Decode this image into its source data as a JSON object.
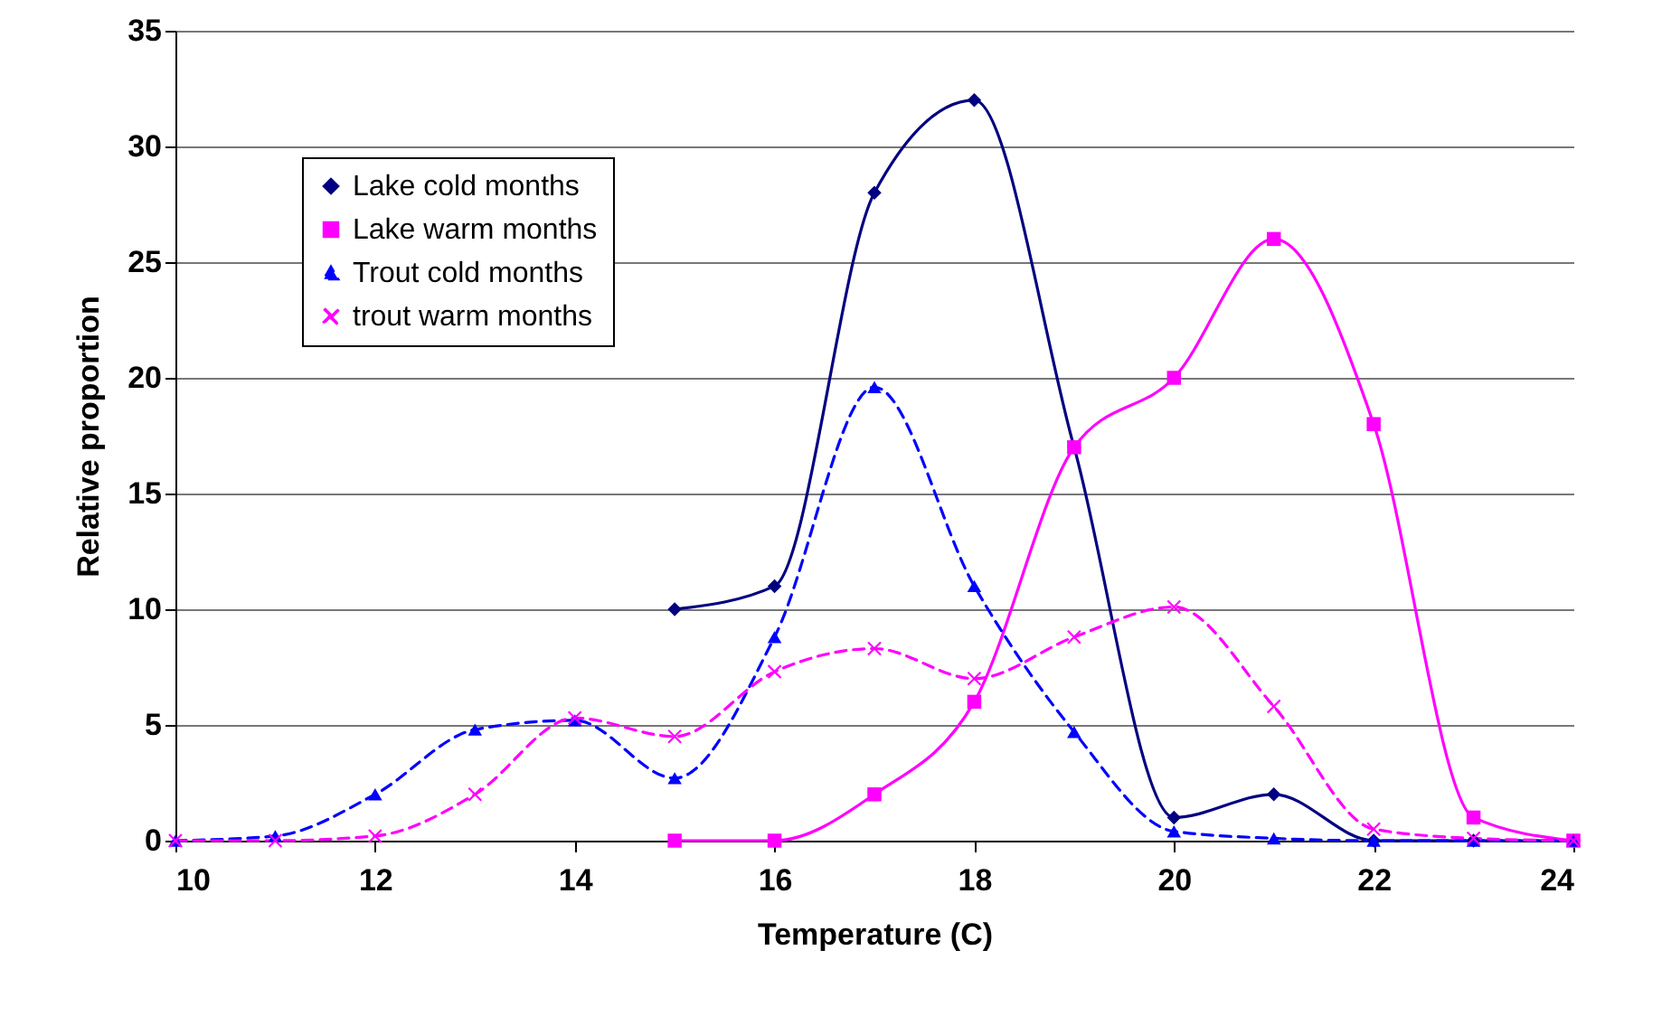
{
  "chart_data": {
    "type": "line",
    "xlabel": "Temperature (C)",
    "ylabel": "Relative proportion",
    "xlim": [
      10,
      24
    ],
    "xticks": [
      10,
      12,
      14,
      16,
      18,
      20,
      22,
      24
    ],
    "ylim": [
      0,
      35
    ],
    "yticks": [
      0,
      5,
      10,
      15,
      20,
      25,
      30,
      35
    ],
    "grid": "y",
    "legend": "top left",
    "series": [
      {
        "name": "Lake cold months",
        "color": "#000080",
        "marker": "diamond",
        "line_style": "solid",
        "x": [
          15,
          16,
          17,
          18,
          19,
          20,
          21,
          22,
          23,
          24
        ],
        "values": [
          10,
          11,
          28,
          32,
          17,
          1,
          2,
          0,
          0,
          0
        ]
      },
      {
        "name": "Lake warm months",
        "color": "#ff00ff",
        "marker": "square",
        "line_style": "solid",
        "x": [
          15,
          16,
          17,
          18,
          19,
          20,
          21,
          22,
          23,
          24
        ],
        "values": [
          0,
          0,
          2,
          6,
          17,
          20,
          26,
          18,
          1,
          0
        ]
      },
      {
        "name": "Trout cold months",
        "color": "#0000ff",
        "marker": "triangle",
        "line_style": "dashed",
        "x": [
          10,
          11,
          12,
          13,
          14,
          15,
          16,
          17,
          18,
          19,
          20,
          21,
          22,
          23,
          24
        ],
        "values": [
          0,
          0.2,
          2,
          4.8,
          5.2,
          2.7,
          8.8,
          19.6,
          11,
          4.7,
          0.4,
          0.1,
          0,
          0,
          0
        ]
      },
      {
        "name": "trout warm months",
        "color": "#ff00ff",
        "marker": "cross",
        "line_style": "dashed",
        "x": [
          10,
          11,
          12,
          13,
          14,
          15,
          16,
          17,
          18,
          19,
          20,
          21,
          22,
          23,
          24
        ],
        "values": [
          0,
          0,
          0.2,
          2,
          5.3,
          4.5,
          7.3,
          8.3,
          7,
          8.8,
          10.1,
          5.8,
          0.5,
          0.1,
          0
        ]
      }
    ]
  }
}
